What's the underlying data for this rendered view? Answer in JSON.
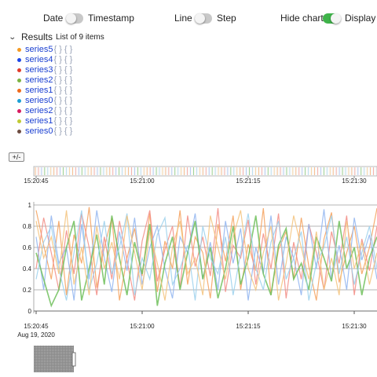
{
  "toggles": {
    "date": {
      "label": "Date",
      "on": false
    },
    "timestamp": {
      "label": "Timestamp"
    },
    "line": {
      "label": "Line",
      "on": false
    },
    "step": {
      "label": "Step"
    },
    "hide_chart": {
      "label": "Hide chart",
      "on": true
    },
    "display": {
      "label": "Display c"
    }
  },
  "results": {
    "title": "Results",
    "count_text": "List of 9 items",
    "braces": "{ } { }",
    "items": [
      {
        "name": "series5",
        "color": "#f59a23"
      },
      {
        "name": "series4",
        "color": "#1d46e8"
      },
      {
        "name": "series3",
        "color": "#e23b2a"
      },
      {
        "name": "series2",
        "color": "#7cb342"
      },
      {
        "name": "series1",
        "color": "#f06a1b"
      },
      {
        "name": "series0",
        "color": "#1a9fd6"
      },
      {
        "name": "series2",
        "color": "#d81b60"
      },
      {
        "name": "series1",
        "color": "#c0ca33"
      },
      {
        "name": "series0",
        "color": "#6d4c41"
      }
    ]
  },
  "zoom_button": {
    "label": "+/-"
  },
  "chart_data": {
    "type": "line",
    "time_ticks": [
      "15:20:45",
      "15:21:00",
      "15:21:15",
      "15:21:30"
    ],
    "date_label": "Aug 19, 2020",
    "y_ticks": [
      "1",
      "0.8",
      "0.6",
      "0.4",
      "0.2",
      "0"
    ],
    "ylim": [
      0,
      1
    ],
    "grid": true,
    "series": [
      {
        "color": "#f5a05a",
        "values": [
          0.95,
          0.62,
          0.3,
          0.85,
          0.15,
          0.72,
          0.45,
          0.98,
          0.22,
          0.6,
          0.88,
          0.1,
          0.5,
          0.78,
          0.33,
          0.92,
          0.18,
          0.66,
          0.4,
          0.95,
          0.25,
          0.7,
          0.55,
          0.12,
          0.82,
          0.47,
          0.9,
          0.2,
          0.63,
          0.38,
          0.97,
          0.15,
          0.58,
          0.75,
          0.3,
          0.88,
          0.42,
          0.1,
          0.68,
          0.93,
          0.27,
          0.55,
          0.8,
          0.35,
          0.6,
          0.97
        ]
      },
      {
        "color": "#f28b82",
        "values": [
          0.4,
          0.88,
          0.55,
          0.2,
          0.76,
          0.35,
          0.92,
          0.6,
          0.15,
          0.7,
          0.3,
          0.85,
          0.48,
          0.1,
          0.66,
          0.95,
          0.28,
          0.58,
          0.8,
          0.22,
          0.9,
          0.42,
          0.7,
          0.33,
          0.97,
          0.18,
          0.62,
          0.5,
          0.86,
          0.25,
          0.73,
          0.4,
          0.92,
          0.12,
          0.65,
          0.3,
          0.82,
          0.55,
          0.2,
          0.75,
          0.45,
          0.9,
          0.15,
          0.68,
          0.38,
          0.8
        ]
      },
      {
        "color": "#8fb4f0",
        "values": [
          0.7,
          0.2,
          0.9,
          0.45,
          0.6,
          0.1,
          0.82,
          0.3,
          0.95,
          0.5,
          0.18,
          0.75,
          0.38,
          0.88,
          0.25,
          0.6,
          0.8,
          0.4,
          0.12,
          0.7,
          0.55,
          0.92,
          0.3,
          0.65,
          0.2,
          0.85,
          0.45,
          0.78,
          0.1,
          0.6,
          0.35,
          0.9,
          0.25,
          0.7,
          0.5,
          0.15,
          0.82,
          0.4,
          0.96,
          0.3,
          0.62,
          0.2,
          0.88,
          0.48,
          0.72,
          0.3
        ]
      },
      {
        "color": "#6fbf5a",
        "values": [
          0.55,
          0.3,
          0.05,
          0.2,
          0.6,
          0.85,
          0.1,
          0.4,
          0.72,
          0.25,
          0.9,
          0.5,
          0.15,
          0.65,
          0.35,
          0.82,
          0.05,
          0.45,
          0.7,
          0.2,
          0.55,
          0.85,
          0.3,
          0.6,
          0.12,
          0.4,
          0.8,
          0.25,
          0.5,
          0.9,
          0.35,
          0.15,
          0.62,
          0.78,
          0.3,
          0.45,
          0.2,
          0.7,
          0.5,
          0.28,
          0.85,
          0.4,
          0.6,
          0.15,
          0.5,
          0.7
        ]
      },
      {
        "color": "#9ad0ec",
        "values": [
          0.3,
          0.65,
          0.8,
          0.4,
          0.1,
          0.55,
          0.95,
          0.2,
          0.45,
          0.85,
          0.35,
          0.6,
          0.92,
          0.15,
          0.5,
          0.3,
          0.72,
          0.88,
          0.25,
          0.4,
          0.62,
          0.1,
          0.8,
          0.5,
          0.35,
          0.7,
          0.15,
          0.55,
          0.92,
          0.4,
          0.2,
          0.65,
          0.85,
          0.3,
          0.5,
          0.75,
          0.1,
          0.45,
          0.6,
          0.9,
          0.35,
          0.7,
          0.25,
          0.55,
          0.8,
          0.4
        ]
      },
      {
        "color": "#f3c27a",
        "values": [
          0.85,
          0.5,
          0.7,
          0.35,
          0.95,
          0.25,
          0.6,
          0.15,
          0.8,
          0.4,
          0.65,
          0.3,
          0.9,
          0.55,
          0.2,
          0.75,
          0.45,
          0.1,
          0.6,
          0.85,
          0.35,
          0.5,
          0.15,
          0.9,
          0.6,
          0.3,
          0.7,
          0.95,
          0.4,
          0.2,
          0.55,
          0.8,
          0.1,
          0.45,
          0.9,
          0.6,
          0.3,
          0.75,
          0.2,
          0.5,
          0.15,
          0.85,
          0.4,
          0.65,
          0.25,
          0.55
        ]
      }
    ]
  }
}
